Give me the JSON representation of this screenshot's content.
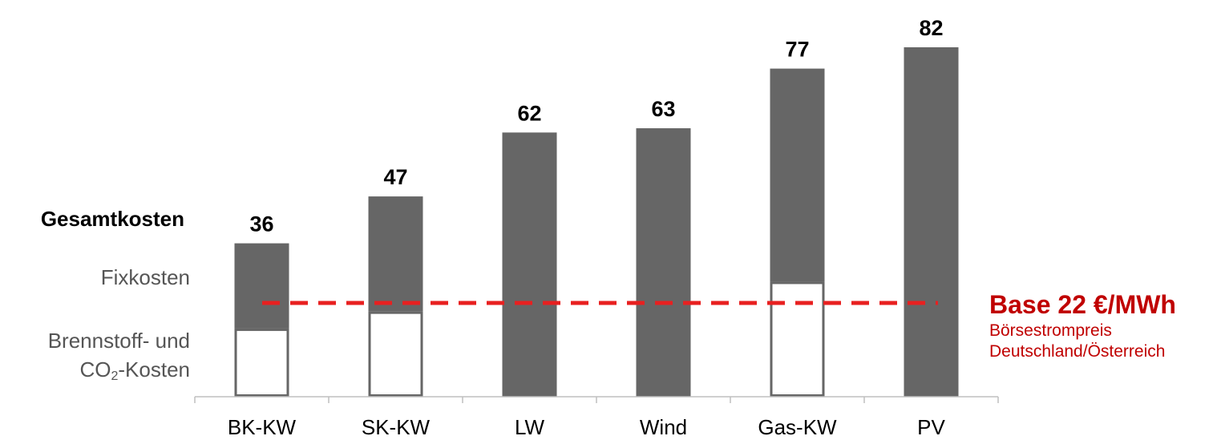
{
  "chart_data": {
    "type": "bar",
    "categories": [
      "BK-KW",
      "SK-KW",
      "LW",
      "Wind",
      "Gas-KW",
      "PV"
    ],
    "series": [
      {
        "name": "Brennstoff- und CO₂-Kosten",
        "values": [
          16,
          20,
          0,
          0,
          27,
          0
        ]
      },
      {
        "name": "Fixkosten",
        "values": [
          20,
          27,
          62,
          63,
          50,
          82
        ]
      }
    ],
    "totals": [
      36,
      47,
      62,
      63,
      77,
      82
    ],
    "reference_line": {
      "value": 22,
      "label": "Base 22 €/MWh",
      "sublabel_lines": [
        "Börsestrompreis",
        "Deutschland/Österreich"
      ],
      "style": "dashed",
      "color": "#e82020"
    },
    "ylim": [
      0,
      82
    ],
    "grid": false,
    "colors": {
      "fix": "#666666",
      "variable": "#ffffff",
      "variable_border": "#666666",
      "reference": "#e82020",
      "reference_text": "#c00000"
    }
  },
  "legend": {
    "total_label": "Gesamtkosten",
    "fix_label": "Fixkosten",
    "fuel_label_line1": "Brennstoff- und",
    "fuel_label_line2_prefix": "CO",
    "fuel_label_line2_sub": "2",
    "fuel_label_line2_suffix": "-Kosten"
  }
}
